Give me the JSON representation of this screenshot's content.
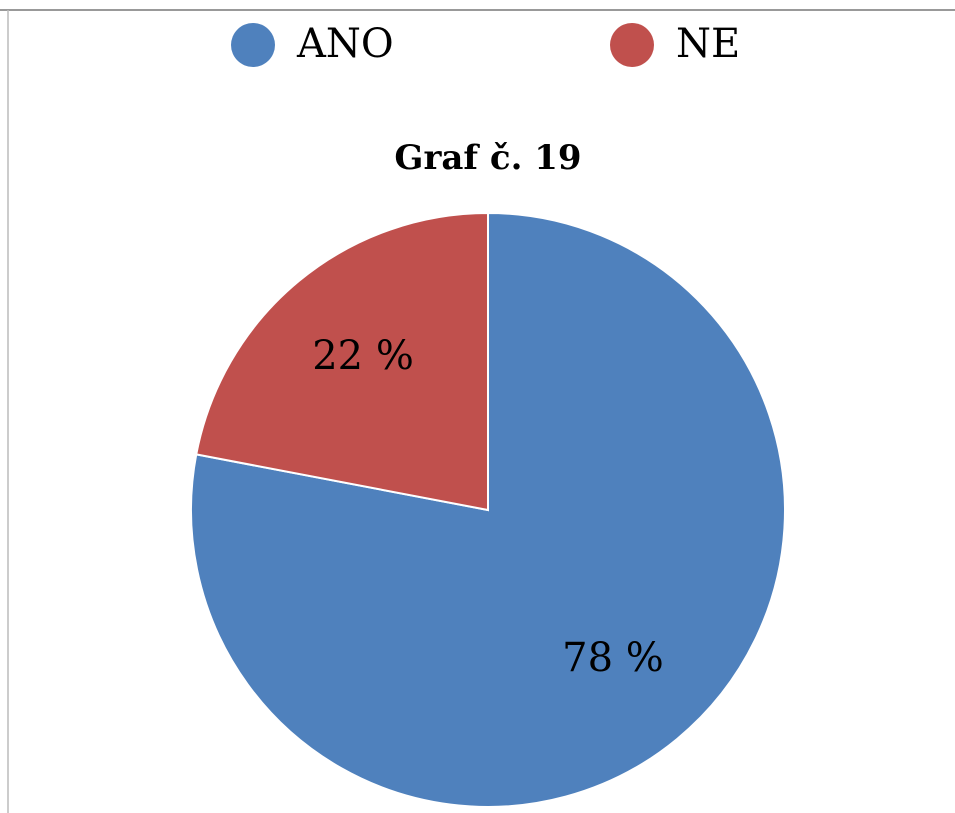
{
  "chart_data": {
    "type": "pie",
    "title": "Graf č. 19",
    "categories": [
      "ANO",
      "NE"
    ],
    "values": [
      78,
      22
    ],
    "value_labels": [
      "78 %",
      "22 %"
    ],
    "colors": [
      "#4f81bd",
      "#c0504d"
    ],
    "legend": "top"
  }
}
